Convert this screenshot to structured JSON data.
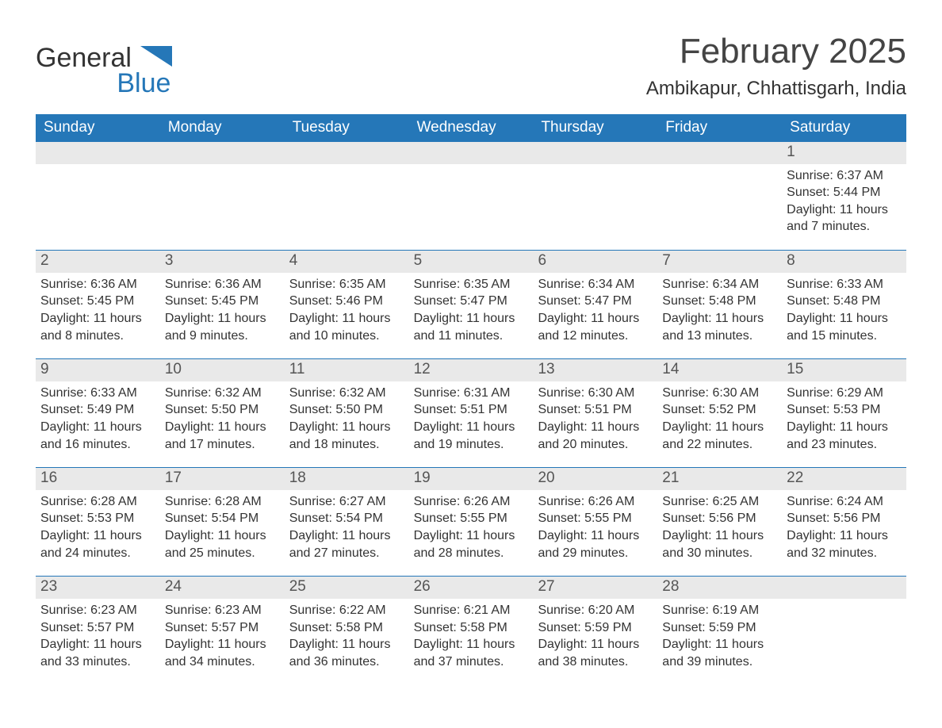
{
  "brand": {
    "word1": "General",
    "word2": "Blue",
    "logo_fill": "#2577b8"
  },
  "header": {
    "month_title": "February 2025",
    "location": "Ambikapur, Chhattisgarh, India"
  },
  "colors": {
    "header_bg": "#2577b8",
    "header_text": "#ffffff",
    "daynum_bg": "#e9e9e9",
    "row_divider": "#2577b8",
    "body_text": "#333333",
    "page_bg": "#ffffff"
  },
  "weekdays": [
    "Sunday",
    "Monday",
    "Tuesday",
    "Wednesday",
    "Thursday",
    "Friday",
    "Saturday"
  ],
  "weeks": [
    [
      {
        "empty": true
      },
      {
        "empty": true
      },
      {
        "empty": true
      },
      {
        "empty": true
      },
      {
        "empty": true
      },
      {
        "empty": true
      },
      {
        "day": "1",
        "sunrise": "Sunrise: 6:37 AM",
        "sunset": "Sunset: 5:44 PM",
        "daylight": "Daylight: 11 hours and 7 minutes."
      }
    ],
    [
      {
        "day": "2",
        "sunrise": "Sunrise: 6:36 AM",
        "sunset": "Sunset: 5:45 PM",
        "daylight": "Daylight: 11 hours and 8 minutes."
      },
      {
        "day": "3",
        "sunrise": "Sunrise: 6:36 AM",
        "sunset": "Sunset: 5:45 PM",
        "daylight": "Daylight: 11 hours and 9 minutes."
      },
      {
        "day": "4",
        "sunrise": "Sunrise: 6:35 AM",
        "sunset": "Sunset: 5:46 PM",
        "daylight": "Daylight: 11 hours and 10 minutes."
      },
      {
        "day": "5",
        "sunrise": "Sunrise: 6:35 AM",
        "sunset": "Sunset: 5:47 PM",
        "daylight": "Daylight: 11 hours and 11 minutes."
      },
      {
        "day": "6",
        "sunrise": "Sunrise: 6:34 AM",
        "sunset": "Sunset: 5:47 PM",
        "daylight": "Daylight: 11 hours and 12 minutes."
      },
      {
        "day": "7",
        "sunrise": "Sunrise: 6:34 AM",
        "sunset": "Sunset: 5:48 PM",
        "daylight": "Daylight: 11 hours and 13 minutes."
      },
      {
        "day": "8",
        "sunrise": "Sunrise: 6:33 AM",
        "sunset": "Sunset: 5:48 PM",
        "daylight": "Daylight: 11 hours and 15 minutes."
      }
    ],
    [
      {
        "day": "9",
        "sunrise": "Sunrise: 6:33 AM",
        "sunset": "Sunset: 5:49 PM",
        "daylight": "Daylight: 11 hours and 16 minutes."
      },
      {
        "day": "10",
        "sunrise": "Sunrise: 6:32 AM",
        "sunset": "Sunset: 5:50 PM",
        "daylight": "Daylight: 11 hours and 17 minutes."
      },
      {
        "day": "11",
        "sunrise": "Sunrise: 6:32 AM",
        "sunset": "Sunset: 5:50 PM",
        "daylight": "Daylight: 11 hours and 18 minutes."
      },
      {
        "day": "12",
        "sunrise": "Sunrise: 6:31 AM",
        "sunset": "Sunset: 5:51 PM",
        "daylight": "Daylight: 11 hours and 19 minutes."
      },
      {
        "day": "13",
        "sunrise": "Sunrise: 6:30 AM",
        "sunset": "Sunset: 5:51 PM",
        "daylight": "Daylight: 11 hours and 20 minutes."
      },
      {
        "day": "14",
        "sunrise": "Sunrise: 6:30 AM",
        "sunset": "Sunset: 5:52 PM",
        "daylight": "Daylight: 11 hours and 22 minutes."
      },
      {
        "day": "15",
        "sunrise": "Sunrise: 6:29 AM",
        "sunset": "Sunset: 5:53 PM",
        "daylight": "Daylight: 11 hours and 23 minutes."
      }
    ],
    [
      {
        "day": "16",
        "sunrise": "Sunrise: 6:28 AM",
        "sunset": "Sunset: 5:53 PM",
        "daylight": "Daylight: 11 hours and 24 minutes."
      },
      {
        "day": "17",
        "sunrise": "Sunrise: 6:28 AM",
        "sunset": "Sunset: 5:54 PM",
        "daylight": "Daylight: 11 hours and 25 minutes."
      },
      {
        "day": "18",
        "sunrise": "Sunrise: 6:27 AM",
        "sunset": "Sunset: 5:54 PM",
        "daylight": "Daylight: 11 hours and 27 minutes."
      },
      {
        "day": "19",
        "sunrise": "Sunrise: 6:26 AM",
        "sunset": "Sunset: 5:55 PM",
        "daylight": "Daylight: 11 hours and 28 minutes."
      },
      {
        "day": "20",
        "sunrise": "Sunrise: 6:26 AM",
        "sunset": "Sunset: 5:55 PM",
        "daylight": "Daylight: 11 hours and 29 minutes."
      },
      {
        "day": "21",
        "sunrise": "Sunrise: 6:25 AM",
        "sunset": "Sunset: 5:56 PM",
        "daylight": "Daylight: 11 hours and 30 minutes."
      },
      {
        "day": "22",
        "sunrise": "Sunrise: 6:24 AM",
        "sunset": "Sunset: 5:56 PM",
        "daylight": "Daylight: 11 hours and 32 minutes."
      }
    ],
    [
      {
        "day": "23",
        "sunrise": "Sunrise: 6:23 AM",
        "sunset": "Sunset: 5:57 PM",
        "daylight": "Daylight: 11 hours and 33 minutes."
      },
      {
        "day": "24",
        "sunrise": "Sunrise: 6:23 AM",
        "sunset": "Sunset: 5:57 PM",
        "daylight": "Daylight: 11 hours and 34 minutes."
      },
      {
        "day": "25",
        "sunrise": "Sunrise: 6:22 AM",
        "sunset": "Sunset: 5:58 PM",
        "daylight": "Daylight: 11 hours and 36 minutes."
      },
      {
        "day": "26",
        "sunrise": "Sunrise: 6:21 AM",
        "sunset": "Sunset: 5:58 PM",
        "daylight": "Daylight: 11 hours and 37 minutes."
      },
      {
        "day": "27",
        "sunrise": "Sunrise: 6:20 AM",
        "sunset": "Sunset: 5:59 PM",
        "daylight": "Daylight: 11 hours and 38 minutes."
      },
      {
        "day": "28",
        "sunrise": "Sunrise: 6:19 AM",
        "sunset": "Sunset: 5:59 PM",
        "daylight": "Daylight: 11 hours and 39 minutes."
      },
      {
        "empty": true
      }
    ]
  ]
}
